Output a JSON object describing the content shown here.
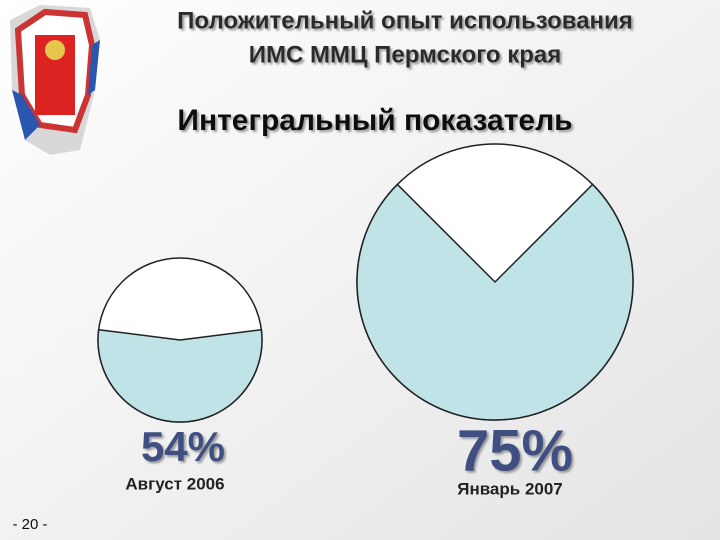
{
  "header": {
    "title_line1": "Положительный опыт использования",
    "title_line2": "ИМС ММЦ Пермского края",
    "subtitle": "Интегральный показатель"
  },
  "page_number": "- 20 -",
  "chart_data": [
    {
      "type": "pie",
      "values": [
        54
      ],
      "value_labels": [
        "54%"
      ],
      "label": "Август 2006",
      "color": "#bfe3e6"
    },
    {
      "type": "pie",
      "values": [
        75
      ],
      "value_labels": [
        "75%"
      ],
      "label": "Январь 2007",
      "color": "#bfe3e6"
    }
  ]
}
